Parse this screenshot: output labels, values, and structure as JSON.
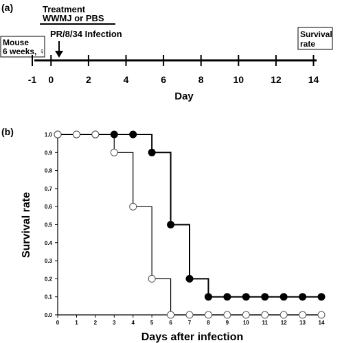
{
  "panel_a": {
    "label": "(a)",
    "treatment_title": "Treatment",
    "treatment_agents": "WWMJ or PBS",
    "infection_label": "PR/8/34 Infection",
    "mouse_label_line1": "Mouse",
    "mouse_label_line2": "6 weeks, ♀",
    "survival_label_line1": "Survival",
    "survival_label_line2": "rate",
    "axis_label": "Day",
    "ticks": [
      "-1",
      "0",
      "2",
      "4",
      "6",
      "8",
      "10",
      "12",
      "14"
    ]
  },
  "chart_data": {
    "type": "line",
    "panel_label": "(b)",
    "xlabel": "Days after infection",
    "ylabel": "Survival rate",
    "xlim": [
      0,
      14
    ],
    "ylim": [
      0,
      1.0
    ],
    "x_ticks": [
      "0",
      "1",
      "2",
      "3",
      "4",
      "5",
      "6",
      "7",
      "8",
      "9",
      "10",
      "11",
      "12",
      "13",
      "14"
    ],
    "y_ticks": [
      "0.0",
      "0.1",
      "0.2",
      "0.3",
      "0.4",
      "0.5",
      "0.6",
      "0.7",
      "0.8",
      "0.9",
      "1.0"
    ],
    "step_plot": true,
    "grid": false,
    "series": [
      {
        "marker": "filled-circle",
        "x": [
          0,
          1,
          2,
          3,
          4,
          5,
          6,
          7,
          8,
          9,
          10,
          11,
          12,
          13,
          14
        ],
        "y": [
          1.0,
          1.0,
          1.0,
          1.0,
          1.0,
          0.9,
          0.5,
          0.2,
          0.1,
          0.1,
          0.1,
          0.1,
          0.1,
          0.1,
          0.1
        ]
      },
      {
        "marker": "open-circle",
        "x": [
          0,
          1,
          2,
          3,
          4,
          5,
          6,
          7,
          8,
          9,
          10,
          11,
          12,
          13,
          14
        ],
        "y": [
          1.0,
          1.0,
          1.0,
          0.9,
          0.6,
          0.2,
          0.0,
          0.0,
          0.0,
          0.0,
          0.0,
          0.0,
          0.0,
          0.0,
          0.0
        ]
      }
    ]
  }
}
